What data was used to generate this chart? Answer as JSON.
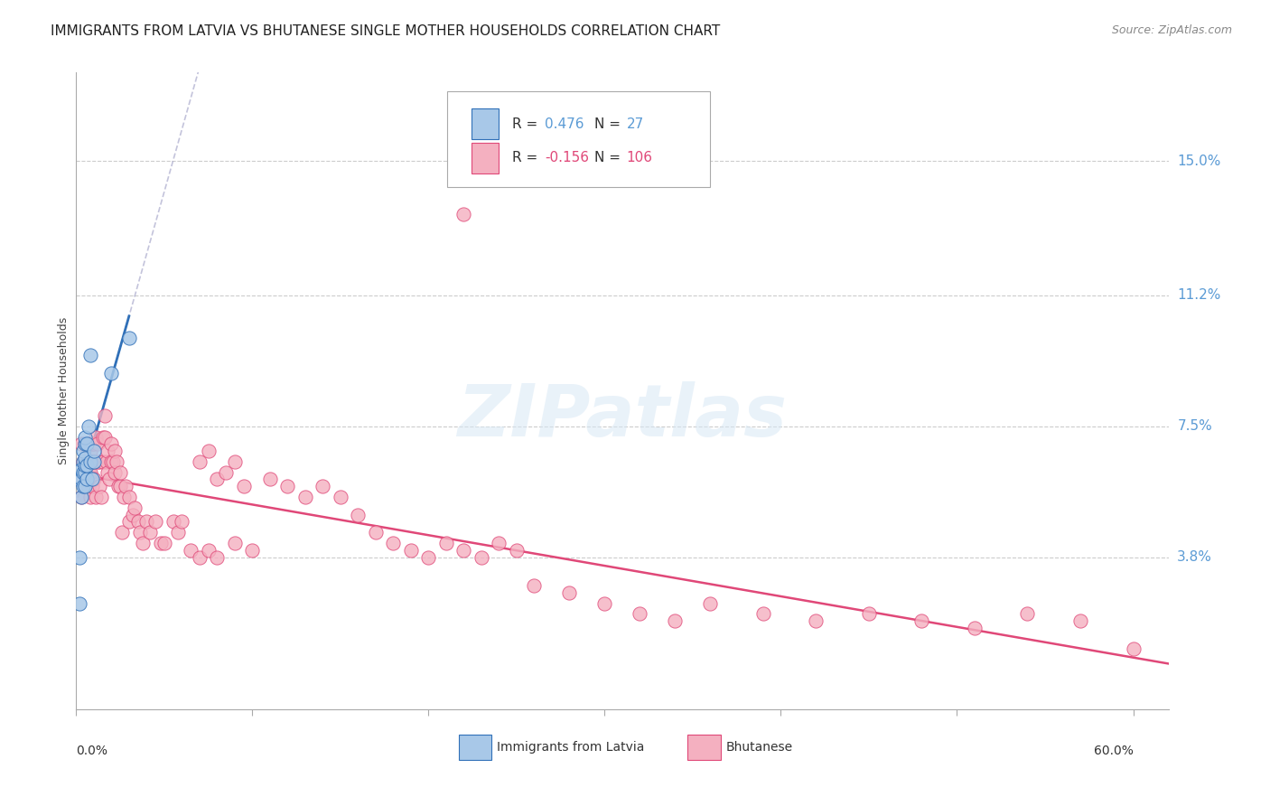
{
  "title": "IMMIGRANTS FROM LATVIA VS BHUTANESE SINGLE MOTHER HOUSEHOLDS CORRELATION CHART",
  "source": "Source: ZipAtlas.com",
  "ylabel": "Single Mother Households",
  "ytick_labels": [
    "15.0%",
    "11.2%",
    "7.5%",
    "3.8%"
  ],
  "ytick_values": [
    0.15,
    0.112,
    0.075,
    0.038
  ],
  "xlim": [
    0.0,
    0.62
  ],
  "ylim": [
    -0.005,
    0.175
  ],
  "legend_latvia_R": "0.476",
  "legend_latvia_N": "27",
  "legend_bhutanese_R": "-0.156",
  "legend_bhutanese_N": "106",
  "latvia_color": "#A8C8E8",
  "bhutanese_color": "#F4B0C0",
  "latvia_line_color": "#3070B8",
  "bhutanese_line_color": "#E04878",
  "background_color": "#FFFFFF",
  "grid_color": "#CCCCCC",
  "latvia_x": [
    0.001,
    0.002,
    0.002,
    0.003,
    0.003,
    0.003,
    0.004,
    0.004,
    0.004,
    0.004,
    0.005,
    0.005,
    0.005,
    0.005,
    0.005,
    0.005,
    0.006,
    0.006,
    0.006,
    0.007,
    0.008,
    0.008,
    0.009,
    0.01,
    0.01,
    0.02,
    0.03
  ],
  "latvia_y": [
    0.06,
    0.025,
    0.038,
    0.055,
    0.06,
    0.063,
    0.058,
    0.062,
    0.065,
    0.068,
    0.058,
    0.062,
    0.064,
    0.066,
    0.07,
    0.072,
    0.06,
    0.064,
    0.07,
    0.075,
    0.065,
    0.095,
    0.06,
    0.065,
    0.068,
    0.09,
    0.1
  ],
  "bhutanese_x": [
    0.002,
    0.003,
    0.003,
    0.004,
    0.004,
    0.005,
    0.005,
    0.005,
    0.006,
    0.006,
    0.007,
    0.007,
    0.007,
    0.008,
    0.008,
    0.008,
    0.009,
    0.009,
    0.009,
    0.01,
    0.01,
    0.01,
    0.011,
    0.011,
    0.012,
    0.012,
    0.013,
    0.013,
    0.014,
    0.015,
    0.015,
    0.016,
    0.016,
    0.017,
    0.018,
    0.018,
    0.019,
    0.02,
    0.02,
    0.021,
    0.022,
    0.022,
    0.023,
    0.024,
    0.025,
    0.025,
    0.026,
    0.027,
    0.028,
    0.03,
    0.03,
    0.032,
    0.033,
    0.035,
    0.036,
    0.038,
    0.04,
    0.042,
    0.045,
    0.048,
    0.05,
    0.055,
    0.058,
    0.06,
    0.065,
    0.07,
    0.075,
    0.08,
    0.09,
    0.095,
    0.1,
    0.11,
    0.12,
    0.13,
    0.14,
    0.15,
    0.16,
    0.17,
    0.18,
    0.19,
    0.2,
    0.21,
    0.22,
    0.23,
    0.24,
    0.25,
    0.26,
    0.28,
    0.3,
    0.32,
    0.34,
    0.36,
    0.39,
    0.42,
    0.45,
    0.48,
    0.51,
    0.54,
    0.57,
    0.6,
    0.22,
    0.07,
    0.075,
    0.08,
    0.085,
    0.09
  ],
  "bhutanese_y": [
    0.06,
    0.055,
    0.07,
    0.06,
    0.065,
    0.058,
    0.065,
    0.07,
    0.06,
    0.065,
    0.058,
    0.062,
    0.07,
    0.055,
    0.062,
    0.068,
    0.058,
    0.065,
    0.07,
    0.06,
    0.065,
    0.07,
    0.055,
    0.072,
    0.065,
    0.07,
    0.058,
    0.065,
    0.055,
    0.065,
    0.072,
    0.072,
    0.078,
    0.065,
    0.062,
    0.068,
    0.06,
    0.065,
    0.07,
    0.065,
    0.062,
    0.068,
    0.065,
    0.058,
    0.058,
    0.062,
    0.045,
    0.055,
    0.058,
    0.055,
    0.048,
    0.05,
    0.052,
    0.048,
    0.045,
    0.042,
    0.048,
    0.045,
    0.048,
    0.042,
    0.042,
    0.048,
    0.045,
    0.048,
    0.04,
    0.038,
    0.04,
    0.038,
    0.042,
    0.058,
    0.04,
    0.06,
    0.058,
    0.055,
    0.058,
    0.055,
    0.05,
    0.045,
    0.042,
    0.04,
    0.038,
    0.042,
    0.04,
    0.038,
    0.042,
    0.04,
    0.03,
    0.028,
    0.025,
    0.022,
    0.02,
    0.025,
    0.022,
    0.02,
    0.022,
    0.02,
    0.018,
    0.022,
    0.02,
    0.012,
    0.135,
    0.065,
    0.068,
    0.06,
    0.062,
    0.065
  ]
}
